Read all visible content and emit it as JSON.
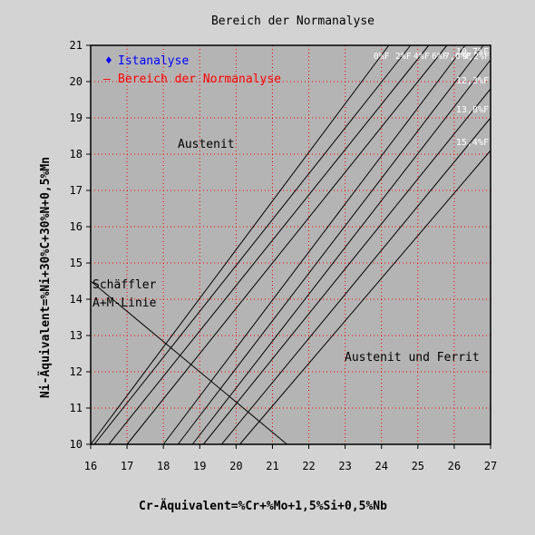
{
  "chart_data": {
    "type": "line",
    "title": "Bereich der Normanalyse",
    "xlabel": "Cr-Äquivalent=%Cr+%Mo+1,5%Si+0,5%Nb",
    "ylabel": "Ni-Äquivalent=%Ni+30%C+30%N+0,5%Mn",
    "xlim": [
      16,
      27
    ],
    "ylim": [
      10,
      21
    ],
    "xticks": [
      "16",
      "17",
      "18",
      "19",
      "20",
      "21",
      "22",
      "23",
      "24",
      "25",
      "26",
      "27"
    ],
    "yticks": [
      "10",
      "11",
      "12",
      "13",
      "14",
      "15",
      "16",
      "17",
      "18",
      "19",
      "20",
      "21"
    ],
    "grid": true,
    "legend": {
      "placement": "top-left",
      "entries": [
        {
          "marker": "♦",
          "label": "Istanalyse",
          "color": "#0000ff"
        },
        {
          "marker": "—",
          "label": "Bereich der Normanalyse",
          "color": "#ff0000"
        }
      ]
    },
    "ferrite_lines": [
      {
        "label": "0%F",
        "x": [
          16.0,
          24.2
        ]
      },
      {
        "label": "2%F",
        "x": [
          16.1,
          24.8
        ]
      },
      {
        "label": "4%F",
        "x": [
          16.5,
          25.3
        ]
      },
      {
        "label": "6%F",
        "x": [
          17.0,
          25.8
        ]
      },
      {
        "label": "7,6%F",
        "x": [
          18.0,
          26.3
        ]
      },
      {
        "label": "9,2%F",
        "x": [
          18.4,
          26.8
        ]
      },
      {
        "label": "10,7%F",
        "x": [
          18.8,
          27.0
        ],
        "y_end": 20.6
      },
      {
        "label": "12,3%F",
        "x": [
          19.1,
          27.0
        ],
        "y_end": 19.8
      },
      {
        "label": "13,8%F",
        "x": [
          19.6,
          27.0
        ],
        "y_end": 19.0
      },
      {
        "label": "15,4%F",
        "x": [
          20.1,
          27.0
        ],
        "y_end": 18.1
      }
    ],
    "schaeffler_line": {
      "label_line1": "Schäffler",
      "label_line2": "A+M-Linie",
      "x": [
        16.0,
        21.4
      ],
      "y": [
        14.5,
        10.0
      ]
    },
    "regions": [
      {
        "label": "Austenit"
      },
      {
        "label": "Austenit und Ferrit"
      }
    ],
    "colors": {
      "plot_bg": "#b4b4b4",
      "grid": "#ff0000",
      "page_bg": "#d3d3d3"
    }
  }
}
